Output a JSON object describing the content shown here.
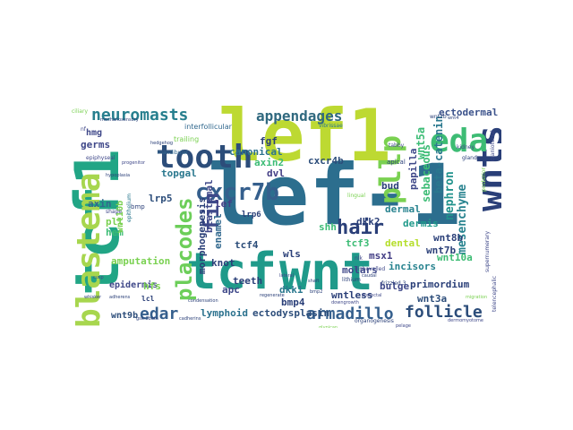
{
  "words": [
    {
      "id": "lef1_big",
      "text": "lef-1",
      "color": "#2c6e8e"
    },
    {
      "id": "lef1_top",
      "text": "lef1",
      "color": "#bdd932"
    },
    {
      "id": "tcf1",
      "text": "tcf1",
      "color": "#21a585"
    },
    {
      "id": "tcf",
      "text": "tcf",
      "color": "#1f9a8a"
    },
    {
      "id": "wnt",
      "text": "wnt",
      "color": "#1f9a8a"
    },
    {
      "id": "blastema",
      "text": "blastema",
      "color": "#a7d64e"
    },
    {
      "id": "tooth",
      "text": "tooth",
      "color": "#2c4d7a"
    },
    {
      "id": "wnts",
      "text": "wnts",
      "color": "#2a3f78"
    },
    {
      "id": "eda",
      "text": "eda",
      "color": "#3dbc74"
    },
    {
      "id": "neuromasts",
      "text": "neuromasts",
      "color": "#277f8e"
    },
    {
      "id": "appendages",
      "text": "appendages",
      "color": "#30697f"
    },
    {
      "id": "placodes",
      "text": "placodes",
      "color": "#6cce59"
    },
    {
      "id": "pllp",
      "text": "pllp",
      "color": "#7ad151"
    },
    {
      "id": "cxcr7b",
      "text": "cxcr7b",
      "color": "#355f8d"
    },
    {
      "id": "fin",
      "text": "fin",
      "color": "#3f4a8a"
    },
    {
      "id": "hair",
      "text": "hair",
      "color": "#2a3f78"
    },
    {
      "id": "armadillo",
      "text": "armadillo",
      "color": "#355f8d"
    },
    {
      "id": "follicle",
      "text": "follicle",
      "color": "#2c4d7a"
    },
    {
      "id": "edar",
      "text": "edar",
      "color": "#355f8d"
    },
    {
      "id": "wnt5a",
      "text": "wnt5a",
      "color": "#3cbc75"
    },
    {
      "id": "beta_catenin",
      "text": "beta-catenin",
      "color": "#2a788e"
    },
    {
      "id": "ectodermal",
      "text": "ectodermal",
      "color": "#3b528b"
    },
    {
      "id": "mesenchyme",
      "text": "mesenchyme",
      "color": "#26828e"
    },
    {
      "id": "nephron",
      "text": "nephron",
      "color": "#20928c"
    },
    {
      "id": "sebaceous",
      "text": "sebaceous",
      "color": "#3cbc75"
    },
    {
      "id": "papilla",
      "text": "papilla",
      "color": "#3f4889"
    },
    {
      "id": "cxcr4b",
      "text": "cxcr4b",
      "color": "#2c4d7a"
    },
    {
      "id": "dvl",
      "text": "dvl",
      "color": "#433e85"
    },
    {
      "id": "axin2",
      "text": "axin2",
      "color": "#3cbc75"
    },
    {
      "id": "fgf",
      "text": "fgf",
      "color": "#2a3f78"
    },
    {
      "id": "canonical",
      "text": "canonical",
      "color": "#2c728e"
    },
    {
      "id": "topgal",
      "text": "topgal",
      "color": "#2a788e"
    },
    {
      "id": "germs",
      "text": "germs",
      "color": "#3f4889"
    },
    {
      "id": "hmg",
      "text": "hmg",
      "color": "#3f4889"
    },
    {
      "id": "lrp5",
      "text": "lrp5",
      "color": "#2c4d7a"
    },
    {
      "id": "axin",
      "text": "axin",
      "color": "#31688e"
    },
    {
      "id": "pll",
      "text": "pll",
      "color": "#7ad151"
    },
    {
      "id": "hem",
      "text": "hem",
      "color": "#3cbc75"
    },
    {
      "id": "wnt10b",
      "text": "wnt10b",
      "color": "#7ad151"
    },
    {
      "id": "blastemal",
      "text": "blastemal",
      "color": "#3f4889"
    },
    {
      "id": "morphogenesis",
      "text": "morphogenesis",
      "color": "#2a3f78"
    },
    {
      "id": "enamel",
      "text": "enamel",
      "color": "#31688e"
    },
    {
      "id": "knot",
      "text": "knot",
      "color": "#2a3f78"
    },
    {
      "id": "tcf4",
      "text": "tcf4",
      "color": "#2c4d7a"
    },
    {
      "id": "shh",
      "text": "shh",
      "color": "#3cbc75"
    },
    {
      "id": "dkk2",
      "text": "dkk2",
      "color": "#2a3f78"
    },
    {
      "id": "tcf3",
      "text": "tcf3",
      "color": "#3cbc75"
    },
    {
      "id": "wnt8b",
      "text": "wnt8b",
      "color": "#2a3f78"
    },
    {
      "id": "bud",
      "text": "bud",
      "color": "#2a3f78"
    },
    {
      "id": "dermal",
      "text": "dermal",
      "color": "#26828e"
    },
    {
      "id": "dermis",
      "text": "dermis",
      "color": "#1f9a8a"
    },
    {
      "id": "wnt7b",
      "text": "wnt7b",
      "color": "#2a3f78"
    },
    {
      "id": "wnt10a",
      "text": "wnt10a",
      "color": "#3dbc74"
    },
    {
      "id": "dental",
      "text": "dental",
      "color": "#b5de2b"
    },
    {
      "id": "molars",
      "text": "molars",
      "color": "#3f4889"
    },
    {
      "id": "incisors",
      "text": "incisors",
      "color": "#26828e"
    },
    {
      "id": "primordium",
      "text": "primordium",
      "color": "#2a3f78"
    },
    {
      "id": "wnt3a",
      "text": "wnt3a",
      "color": "#2c4d7a"
    },
    {
      "id": "bulge",
      "text": "bulge",
      "color": "#3f4889"
    },
    {
      "id": "wntless",
      "text": "wntless",
      "color": "#2a3f78"
    },
    {
      "id": "wls",
      "text": "wls",
      "color": "#2a3f78"
    },
    {
      "id": "msx1",
      "text": "msx1",
      "color": "#433e85"
    },
    {
      "id": "amputation",
      "text": "amputation",
      "color": "#7ad151"
    },
    {
      "id": "epidermis",
      "text": "epidermis",
      "color": "#3f4889"
    },
    {
      "id": "hfs",
      "text": "hfs",
      "color": "#7ad151"
    },
    {
      "id": "teeth",
      "text": "teeth",
      "color": "#2a3f78"
    },
    {
      "id": "dkk1",
      "text": "dkk1",
      "color": "#2a788e"
    },
    {
      "id": "apc",
      "text": "apc",
      "color": "#3f4889"
    },
    {
      "id": "bmp4",
      "text": "bmp4",
      "color": "#2a3f78"
    },
    {
      "id": "lymphoid",
      "text": "lymphoid",
      "color": "#2c728e"
    },
    {
      "id": "ectodysplasin",
      "text": "ectodysplasin",
      "color": "#2c4d7a"
    },
    {
      "id": "wnt9b",
      "text": "wnt9b",
      "color": "#2c4d7a"
    },
    {
      "id": "lef",
      "text": "lef",
      "color": "#433e85"
    },
    {
      "id": "lrp6",
      "text": "lrp6",
      "color": "#2a3f78"
    },
    {
      "id": "lcl",
      "text": "lcl",
      "color": "#2a3f78"
    },
    {
      "id": "interfollicular",
      "text": "interfollicular",
      "color": "#31688e"
    },
    {
      "id": "trailing",
      "text": "trailing",
      "color": "#7ad151"
    },
    {
      "id": "mandibular",
      "text": "mandibular",
      "color": "#31688e"
    },
    {
      "id": "epiphyseal",
      "text": "epiphyseal",
      "color": "#3f4889"
    },
    {
      "id": "epithelium",
      "text": "epithelium",
      "color": "#2a788e"
    },
    {
      "id": "lithium",
      "text": "lithium",
      "color": "#2a3f78"
    },
    {
      "id": "dishevelled",
      "text": "dishevelled",
      "color": "#3f4889"
    },
    {
      "id": "apical",
      "text": "apical",
      "color": "#2a3f78"
    },
    {
      "id": "lingual",
      "text": "lingual",
      "color": "#7ad151"
    },
    {
      "id": "tabby",
      "text": "tabby",
      "color": "#3f4889"
    },
    {
      "id": "glands",
      "text": "glands",
      "color": "#2a3f78"
    },
    {
      "id": "shape",
      "text": "shape",
      "color": "#3f4889"
    },
    {
      "id": "regenerate",
      "text": "regenerate",
      "color": "#2a3f78"
    },
    {
      "id": "cusp",
      "text": "cusp",
      "color": "#3f4889"
    },
    {
      "id": "whisker",
      "text": "whisker",
      "color": "#2a3f78"
    },
    {
      "id": "shaft",
      "text": "shaft",
      "color": "#2a3f78"
    },
    {
      "id": "nlk",
      "text": "nlk",
      "color": "#3f4889"
    },
    {
      "id": "frizzled3",
      "text": "frizzled 3",
      "color": "#2a3f78"
    },
    {
      "id": "caudal",
      "text": "caudal",
      "color": "#2a3f78"
    },
    {
      "id": "pretectal",
      "text": "pretectal",
      "color": "#3f4889"
    },
    {
      "id": "posterior",
      "text": "posterior",
      "color": "#7ad151"
    },
    {
      "id": "supernumerary",
      "text": "supernumerary",
      "color": "#3f4889"
    },
    {
      "id": "telencephalic",
      "text": "telencephalic",
      "color": "#3f4889"
    },
    {
      "id": "mechanosensory",
      "text": "mechanosensory",
      "color": "#2a3f78"
    },
    {
      "id": "vibrissae",
      "text": "vibrissae",
      "color": "#2a788e"
    },
    {
      "id": "craniofacial",
      "text": "craniofacial",
      "color": "#3f4889"
    },
    {
      "id": "dermomyotome",
      "text": "dermomyotome",
      "color": "#3f4889"
    },
    {
      "id": "ciliary",
      "text": "ciliary",
      "color": "#7ad151"
    },
    {
      "id": "kidney",
      "text": "kidney",
      "color": "#3f4889"
    },
    {
      "id": "wnt4",
      "text": "wnt4",
      "color": "#2a3f78"
    },
    {
      "id": "wnt2b",
      "text": "wnt2b",
      "color": "#2a3f78"
    },
    {
      "id": "lateral",
      "text": "lateral",
      "color": "#3f4889"
    },
    {
      "id": "migration",
      "text": "migration",
      "color": "#7ad151"
    },
    {
      "id": "organogenesis",
      "text": "organogenesis",
      "color": "#2a3f78"
    },
    {
      "id": "downgrowth",
      "text": "downgrowth",
      "color": "#3f4889"
    },
    {
      "id": "pelage",
      "text": "pelage",
      "color": "#3f4889"
    },
    {
      "id": "hypoplasia",
      "text": "hypoplasia",
      "color": "#2a3f78"
    },
    {
      "id": "gsk3beta",
      "text": "gsk-3beta",
      "color": "#2a3f78"
    },
    {
      "id": "adherens",
      "text": "adherens",
      "color": "#2a3f78"
    },
    {
      "id": "progenitor",
      "text": "progenitor",
      "color": "#3f4889"
    },
    {
      "id": "condensation",
      "text": "condensation",
      "color": "#2a3f78"
    },
    {
      "id": "bmp",
      "text": "bmp",
      "color": "#2a3f78"
    },
    {
      "id": "cadherins",
      "text": "cadherins",
      "color": "#2a3f78"
    },
    {
      "id": "bmp2",
      "text": "bmp2",
      "color": "#2a3f78"
    },
    {
      "id": "glypican",
      "text": "glypican",
      "color": "#7ad151"
    },
    {
      "id": "hedgehog",
      "text": "hedgehog",
      "color": "#2a3f78"
    },
    {
      "id": "nf",
      "text": "nf",
      "color": "#3f4889"
    }
  ]
}
